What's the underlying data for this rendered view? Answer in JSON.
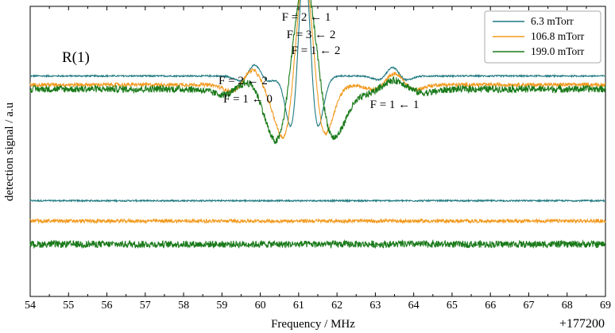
{
  "chart_data": {
    "type": "line",
    "title": "",
    "panel_label": "R(1)",
    "xlabel": "Frequency / MHz",
    "ylabel": "detection signal / a.u",
    "x_offset_label": "+177200",
    "xlim": [
      54,
      69
    ],
    "ylim": [
      0,
      1
    ],
    "x_ticks": [
      "54",
      "55",
      "56",
      "57",
      "58",
      "59",
      "60",
      "61",
      "62",
      "63",
      "64",
      "65",
      "66",
      "67",
      "68",
      "69"
    ],
    "grid": false,
    "legend_position": "top-right",
    "annotations": [
      {
        "lines": [
          "F = 2 ← 2",
          "F = 1 ← 0"
        ],
        "x": 59.8
      },
      {
        "lines": [
          "F = 2 ← 1",
          "F = 3 ← 2",
          "F = 1 ← 2"
        ],
        "x": 61.2
      },
      {
        "lines": [
          "F = 1 ← 1"
        ],
        "x": 63.5
      }
    ],
    "series": [
      {
        "name": "6.3 mTorr",
        "color": "#1f7a80",
        "spectrum": {
          "baseline": 0.76,
          "noise": 0.0025,
          "components": [
            {
              "center": 59.85,
              "amp": 0.09,
              "width": 0.22
            },
            {
              "center": 61.15,
              "amp": 0.92,
              "width": 0.21
            },
            {
              "center": 63.45,
              "amp": 0.07,
              "width": 0.22
            }
          ]
        },
        "residual_baseline": 0.33
      },
      {
        "name": "106.8 mTorr",
        "color": "#f29a1f",
        "spectrum": {
          "baseline": 0.73,
          "noise": 0.006,
          "components": [
            {
              "center": 59.8,
              "amp": 0.12,
              "width": 0.32
            },
            {
              "center": 61.15,
              "amp": 0.9,
              "width": 0.32
            },
            {
              "center": 63.5,
              "amp": 0.09,
              "width": 0.32
            }
          ]
        },
        "residual_baseline": 0.26
      },
      {
        "name": "199.0 mTorr",
        "color": "#1a7a1a",
        "spectrum": {
          "baseline": 0.715,
          "noise": 0.012,
          "components": [
            {
              "center": 59.8,
              "amp": 0.1,
              "width": 0.45
            },
            {
              "center": 61.15,
              "amp": 0.89,
              "width": 0.45
            },
            {
              "center": 63.5,
              "amp": 0.07,
              "width": 0.45
            }
          ]
        },
        "residual_baseline": 0.18
      }
    ]
  }
}
